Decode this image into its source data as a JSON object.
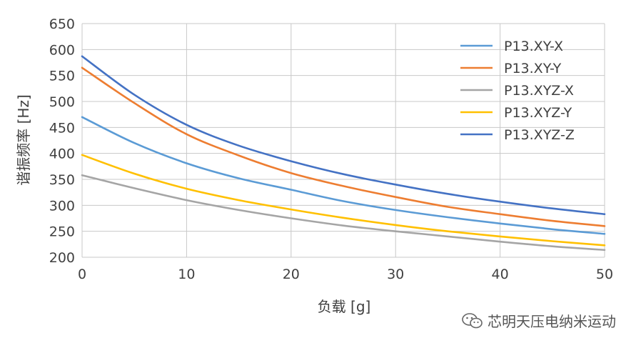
{
  "chart_data": {
    "type": "line",
    "title": "",
    "xlabel": "负载 [g]",
    "ylabel": "谐振频率 [Hz]",
    "xlim": [
      0,
      50
    ],
    "ylim": [
      200,
      650
    ],
    "xticks": [
      0,
      10,
      20,
      30,
      40,
      50
    ],
    "yticks": [
      200,
      250,
      300,
      350,
      400,
      450,
      500,
      550,
      600,
      650
    ],
    "grid": true,
    "legend_position": "top-right",
    "x": [
      0,
      5,
      10,
      15,
      20,
      25,
      30,
      35,
      40,
      45,
      50
    ],
    "series": [
      {
        "name": "P13.XY-X",
        "color": "#5b9bd5",
        "values": [
          470,
          420,
          381,
          352,
          330,
          308,
          291,
          277,
          265,
          254,
          245
        ]
      },
      {
        "name": "P13.XY-Y",
        "color": "#ed7d31",
        "values": [
          565,
          497,
          437,
          396,
          362,
          337,
          316,
          297,
          283,
          270,
          260
        ]
      },
      {
        "name": "P13.XYZ-X",
        "color": "#a5a5a5",
        "values": [
          358,
          333,
          310,
          291,
          275,
          261,
          250,
          240,
          230,
          221,
          214
        ]
      },
      {
        "name": "P13.XYZ-Y",
        "color": "#ffc000",
        "values": [
          397,
          361,
          332,
          310,
          292,
          276,
          262,
          250,
          240,
          231,
          223
        ]
      },
      {
        "name": "P13.XYZ-Z",
        "color": "#4472c4",
        "values": [
          587,
          513,
          455,
          415,
          385,
          360,
          340,
          322,
          307,
          294,
          283
        ]
      }
    ]
  },
  "watermark": {
    "icon": "wechat-icon",
    "text": "芯明天压电纳米运动"
  }
}
